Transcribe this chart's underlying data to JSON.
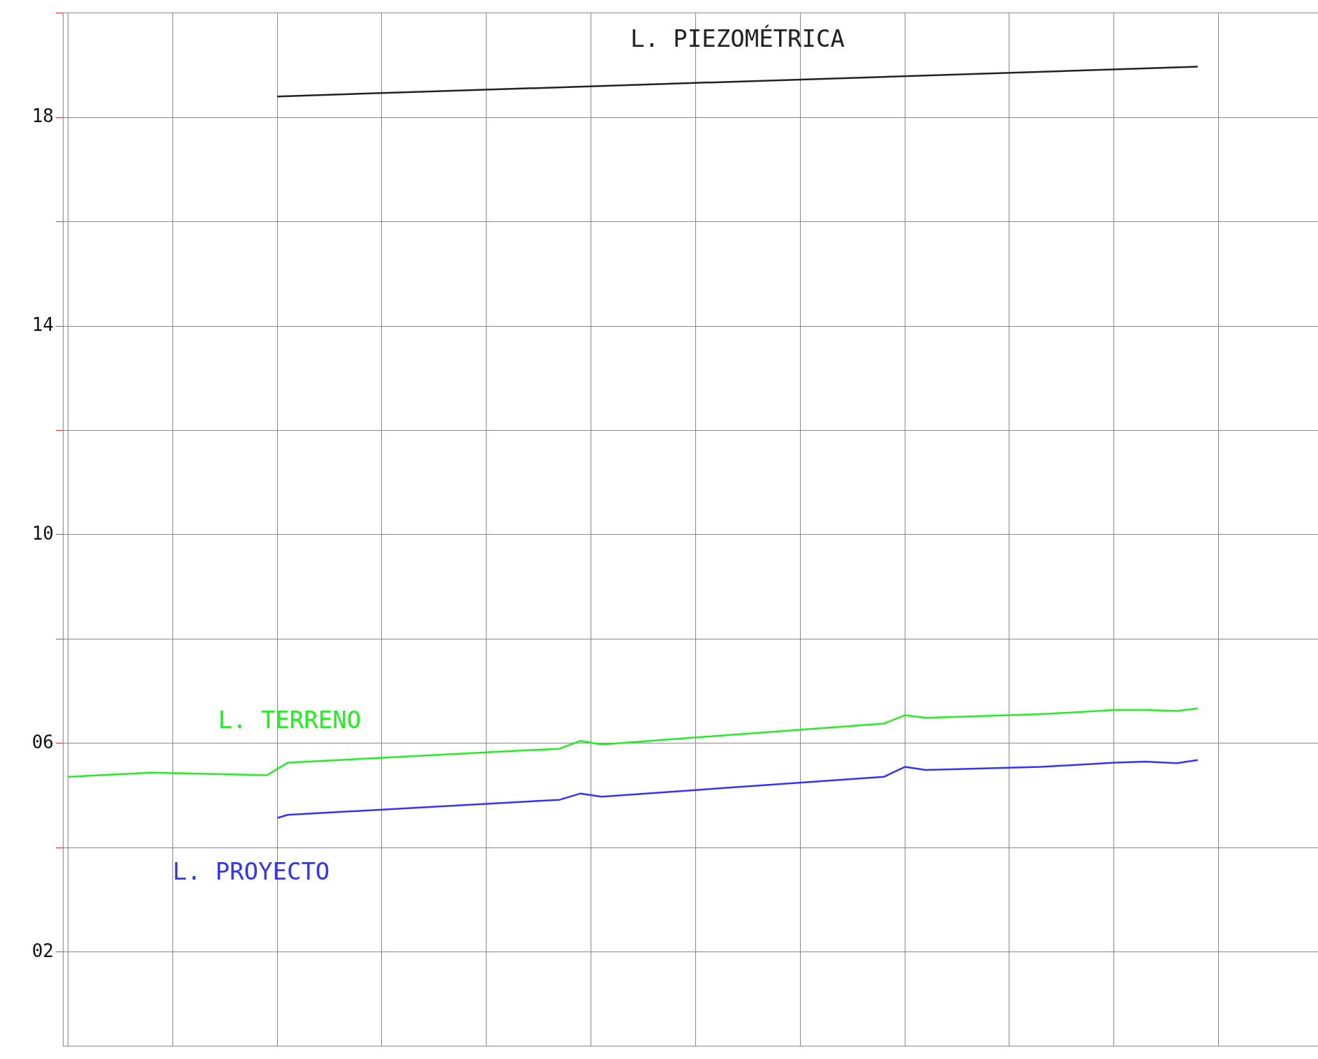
{
  "chart_data": {
    "type": "line",
    "ylim": [
      0.2,
      20
    ],
    "categories": [
      null,
      null,
      null,
      null,
      null,
      null,
      null,
      null,
      null,
      null,
      null,
      null,
      null,
      null,
      null,
      null,
      null,
      null,
      null,
      null,
      null,
      null,
      null,
      null,
      null,
      null,
      null,
      null,
      null,
      null,
      null,
      null,
      null,
      null,
      null,
      null,
      null,
      null,
      null,
      null,
      null,
      null,
      null,
      null,
      null,
      null,
      null,
      null,
      null,
      null,
      null,
      null,
      null,
      null,
      null,
      null,
      null,
      null,
      null,
      null,
      null,
      null,
      null,
      null,
      null,
      null,
      null,
      null,
      null,
      null,
      null,
      null,
      null,
      null,
      null,
      null,
      null,
      null,
      null,
      null,
      null,
      null,
      null,
      null,
      null,
      null,
      null,
      null,
      null,
      null,
      null,
      null,
      null,
      null,
      null,
      null,
      null,
      null,
      null,
      null,
      null,
      null,
      null,
      null,
      null,
      null,
      null,
      null,
      null,
      null,
      null,
      null,
      null,
      null,
      null,
      null,
      null,
      null,
      null,
      null
    ],
    "yticks": [
      {
        "value": 2,
        "label": "02"
      },
      {
        "value": 4,
        "label": null
      },
      {
        "value": 6,
        "label": "06"
      },
      {
        "value": 8,
        "label": null
      },
      {
        "value": 10,
        "label": "10"
      },
      {
        "value": 12,
        "label": null
      },
      {
        "value": 14,
        "label": "14"
      },
      {
        "value": 16,
        "label": null
      },
      {
        "value": 18,
        "label": "18"
      },
      {
        "value": 20,
        "label": null
      }
    ],
    "tick_labels": "y",
    "grid": true,
    "legend": false,
    "marker": "none",
    "line_style": "solid",
    "series": [
      {
        "name": "L. PIEZOMÉTRICA",
        "color": "#222222",
        "values": [
          null,
          null,
          null,
          null,
          null,
          null,
          null,
          null,
          null,
          null,
          null,
          null,
          null,
          null,
          null,
          null,
          null,
          null,
          null,
          null,
          18.4,
          null,
          null,
          null,
          null,
          null,
          null,
          null,
          null,
          null,
          null,
          null,
          null,
          null,
          null,
          null,
          null,
          null,
          null,
          null,
          null,
          null,
          null,
          null,
          null,
          null,
          null,
          null,
          null,
          null,
          null,
          null,
          null,
          null,
          null,
          null,
          null,
          null,
          null,
          null,
          null,
          null,
          null,
          null,
          null,
          null,
          null,
          null,
          null,
          null,
          null,
          null,
          null,
          null,
          null,
          null,
          null,
          null,
          null,
          null,
          null,
          null,
          null,
          null,
          null,
          null,
          null,
          null,
          null,
          null,
          null,
          null,
          null,
          null,
          null,
          null,
          null,
          null,
          null,
          null,
          null,
          null,
          null,
          null,
          null,
          null,
          null,
          null,
          18.97,
          null,
          null,
          null,
          null,
          null,
          null,
          null,
          null,
          null,
          null,
          null
        ]
      },
      {
        "name": "L. TERRENO",
        "color": "#22ee22",
        "values": [
          5.36,
          null,
          null,
          null,
          null,
          null,
          null,
          null,
          5.44,
          null,
          null,
          null,
          null,
          null,
          null,
          null,
          null,
          null,
          null,
          5.39,
          null,
          5.63,
          null,
          null,
          null,
          null,
          null,
          null,
          null,
          null,
          null,
          null,
          null,
          null,
          null,
          null,
          null,
          null,
          null,
          null,
          null,
          null,
          null,
          null,
          null,
          null,
          null,
          5.9,
          null,
          6.05,
          null,
          5.98,
          null,
          null,
          null,
          null,
          null,
          null,
          null,
          null,
          null,
          null,
          null,
          null,
          null,
          null,
          null,
          null,
          null,
          null,
          null,
          null,
          null,
          null,
          null,
          null,
          null,
          null,
          6.38,
          null,
          6.54,
          null,
          6.49,
          null,
          null,
          null,
          null,
          null,
          null,
          null,
          null,
          null,
          null,
          6.56,
          null,
          null,
          null,
          null,
          null,
          null,
          6.64,
          null,
          null,
          6.64,
          null,
          null,
          6.62,
          null,
          6.67,
          null,
          null,
          null,
          null,
          null,
          null,
          null,
          null,
          null,
          null,
          null
        ]
      },
      {
        "name": "L. PROYECTO",
        "color": "#3333ff",
        "values": [
          null,
          null,
          null,
          null,
          null,
          null,
          null,
          null,
          null,
          null,
          null,
          null,
          null,
          null,
          null,
          null,
          null,
          null,
          null,
          null,
          4.57,
          4.63,
          null,
          null,
          null,
          null,
          null,
          null,
          null,
          null,
          null,
          null,
          null,
          null,
          null,
          null,
          null,
          null,
          null,
          null,
          null,
          null,
          null,
          null,
          null,
          null,
          null,
          4.92,
          null,
          5.04,
          null,
          4.98,
          null,
          null,
          null,
          null,
          null,
          null,
          null,
          null,
          null,
          null,
          null,
          null,
          null,
          null,
          null,
          null,
          null,
          null,
          null,
          null,
          null,
          null,
          null,
          null,
          null,
          null,
          5.36,
          null,
          5.55,
          null,
          5.49,
          null,
          null,
          null,
          null,
          null,
          null,
          null,
          null,
          null,
          null,
          5.55,
          null,
          null,
          null,
          null,
          null,
          null,
          5.63,
          null,
          null,
          5.65,
          null,
          null,
          5.62,
          null,
          5.68,
          null,
          null,
          null,
          null,
          null,
          null,
          null,
          null,
          null,
          null,
          null
        ]
      }
    ]
  }
}
